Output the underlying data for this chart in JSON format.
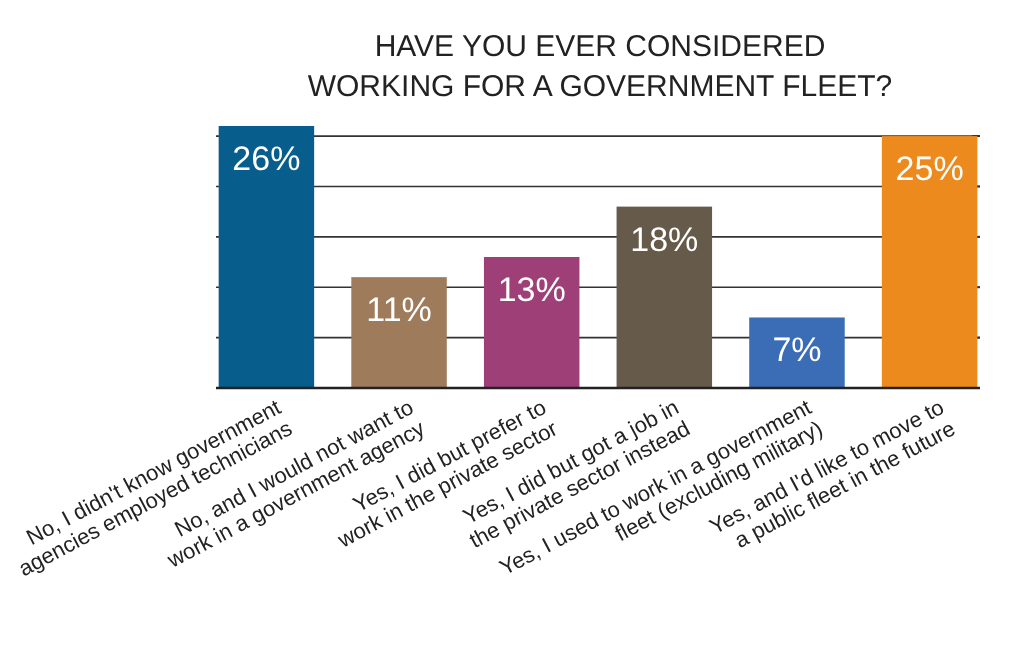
{
  "chart_data": {
    "type": "bar",
    "title": "HAVE YOU EVER CONSIDERED WORKING FOR A GOVERNMENT FLEET?",
    "categories": [
      "No, I didn't know government agencies employed technicians",
      "No, and I would not want to work in a government agency",
      "Yes, I did but prefer to work in the private sector",
      "Yes, I did but got a job in the private sector instead",
      "Yes, I used to work in a government fleet (excluding military)",
      "Yes, and I'd like to move to a public fleet in the future"
    ],
    "values": [
      26,
      11,
      13,
      18,
      7,
      25
    ],
    "colors": [
      "#075d8c",
      "#9e7b5b",
      "#9e3f78",
      "#665a4a",
      "#3a6db5",
      "#ec8a1e"
    ],
    "value_labels": [
      "26%",
      "11%",
      "13%",
      "18%",
      "7%",
      "25%"
    ],
    "ylim": [
      0,
      26
    ],
    "yticks": [
      {
        "value": 5,
        "label": null
      },
      {
        "value": 10,
        "label": null
      },
      {
        "value": 15,
        "label": null
      },
      {
        "value": 20,
        "label": null
      },
      {
        "value": 25,
        "label": null
      }
    ],
    "grid": "y",
    "tick_labels": "x"
  }
}
